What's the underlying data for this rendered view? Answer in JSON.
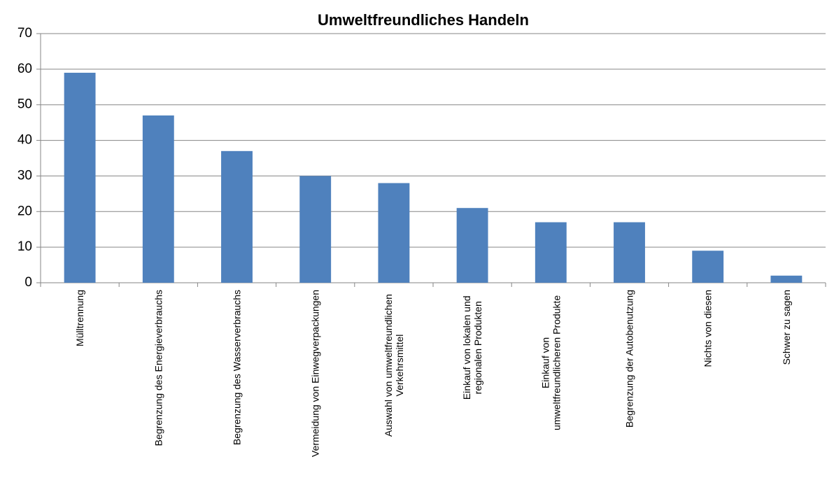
{
  "chart_data": {
    "type": "bar",
    "title": "Umweltfreundliches Handeln",
    "categories": [
      "Mülltrennung",
      "Begrenzung des Energieverbrauchs",
      "Begrenzung des Wasserverbrauchs",
      "Vermeidung von Einwegverpackungen",
      "Auswahl von umweltfreundlichen Verkehrsmittel",
      "Einkauf von lokalen und regionalen Produkten",
      "Einkauf von umweltfreundlicheren Produkte",
      "Begrenzung der Autobenutzung",
      "Nichts von diesen",
      "Schwer zu sagen"
    ],
    "values": [
      59,
      47,
      37,
      30,
      28,
      21,
      17,
      17,
      9,
      2
    ],
    "color": "#4f81bd",
    "ylim": [
      0,
      70
    ],
    "yticks": [
      0,
      10,
      20,
      30,
      40,
      50,
      60,
      70
    ],
    "grid": true
  }
}
